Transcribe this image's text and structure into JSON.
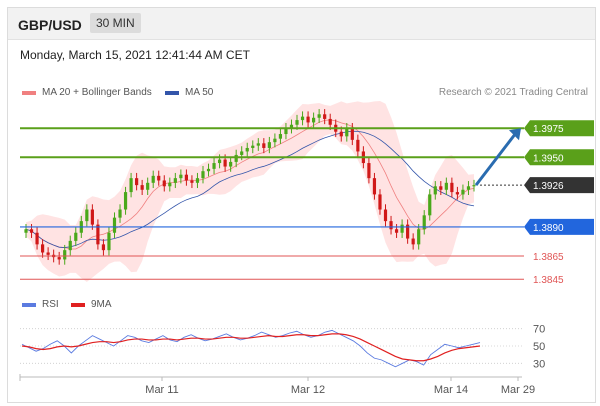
{
  "header": {
    "pair": "GBP/USD",
    "timeframe": "30 MIN",
    "datetime": "Monday, March 15, 2021 12:41:44 AM CET"
  },
  "legend": {
    "ma20_label": "MA 20 + Bollinger Bands",
    "ma50_label": "MA 50",
    "credit": "Research © 2021 Trading Central",
    "rsi_label": "RSI",
    "rsi_ma_label": "9MA"
  },
  "colors": {
    "ma20": "#f08080",
    "ma50": "#3355aa",
    "resistance": "#5aa01a",
    "support_blue": "#2266dd",
    "support_red": "#e05555",
    "current": "#333333",
    "rsi": "#5b7be0",
    "rsi_ma": "#e02020",
    "bull": "#4aa81a",
    "bear": "#d01818",
    "band": "#ffdede"
  },
  "chart_data": [
    {
      "type": "candlestick",
      "title": "GBP/USD 30 MIN",
      "xlabels": [
        "Mar 11",
        "Mar 12",
        "Mar 14",
        "Mar 29"
      ],
      "ylim": [
        1.384,
        1.3995
      ],
      "levels": [
        {
          "label": "1.3975",
          "value": 1.3975,
          "kind": "resistance"
        },
        {
          "label": "1.3950",
          "value": 1.395,
          "kind": "resistance"
        },
        {
          "label": "1.3926",
          "value": 1.3926,
          "kind": "current"
        },
        {
          "label": "1.3890",
          "value": 1.389,
          "kind": "support_blue"
        },
        {
          "label": "1.3865",
          "value": 1.3865,
          "kind": "support_red"
        },
        {
          "label": "1.3845",
          "value": 1.3845,
          "kind": "support_red"
        }
      ],
      "close_path": [
        1.3888,
        1.3885,
        1.3875,
        1.3868,
        1.3866,
        1.3864,
        1.3862,
        1.387,
        1.3878,
        1.3885,
        1.3895,
        1.3905,
        1.3892,
        1.3875,
        1.387,
        1.3885,
        1.3898,
        1.3905,
        1.392,
        1.3932,
        1.3926,
        1.3922,
        1.3928,
        1.3934,
        1.393,
        1.3925,
        1.3928,
        1.3932,
        1.3935,
        1.393,
        1.3928,
        1.3932,
        1.3938,
        1.394,
        1.3945,
        1.3948,
        1.3942,
        1.3946,
        1.3952,
        1.3955,
        1.3958,
        1.396,
        1.3962,
        1.3958,
        1.3963,
        1.3966,
        1.397,
        1.3975,
        1.3978,
        1.3982,
        1.3985,
        1.398,
        1.3984,
        1.3987,
        1.3983,
        1.3978,
        1.3972,
        1.3968,
        1.3975,
        1.3965,
        1.3955,
        1.3945,
        1.3932,
        1.3918,
        1.3905,
        1.3895,
        1.3888,
        1.3885,
        1.3892,
        1.388,
        1.3875,
        1.3888,
        1.39,
        1.3918,
        1.3925,
        1.3922,
        1.3928,
        1.392,
        1.3918,
        1.3922,
        1.3925,
        1.3926
      ],
      "forecast": [
        1.3926,
        1.3975
      ]
    },
    {
      "type": "line",
      "title": "RSI",
      "ylim": [
        20,
        80
      ],
      "yticks": [
        70,
        50,
        30
      ],
      "series": [
        {
          "name": "RSI",
          "values": [
            52,
            48,
            44,
            47,
            52,
            56,
            50,
            42,
            50,
            56,
            62,
            58,
            54,
            50,
            56,
            62,
            60,
            56,
            54,
            58,
            62,
            57,
            55,
            60,
            63,
            59,
            56,
            58,
            61,
            64,
            60,
            57,
            59,
            62,
            66,
            63,
            60,
            62,
            65,
            67,
            63,
            60,
            62,
            66,
            68,
            64,
            60,
            56,
            50,
            42,
            36,
            34,
            30,
            26,
            30,
            34,
            32,
            28,
            40,
            46,
            52,
            50,
            48,
            50,
            52,
            54
          ]
        },
        {
          "name": "9MA",
          "values": [
            50,
            49,
            47,
            46,
            47,
            49,
            50,
            49,
            50,
            52,
            54,
            55,
            55,
            54,
            55,
            57,
            58,
            58,
            57,
            57,
            58,
            58,
            57,
            58,
            59,
            59,
            58,
            58,
            59,
            60,
            60,
            59,
            59,
            60,
            61,
            62,
            61,
            61,
            62,
            63,
            63,
            62,
            62,
            63,
            64,
            64,
            63,
            61,
            58,
            54,
            50,
            46,
            42,
            38,
            35,
            34,
            33,
            33,
            35,
            38,
            42,
            45,
            47,
            48,
            49,
            50
          ]
        }
      ]
    }
  ]
}
